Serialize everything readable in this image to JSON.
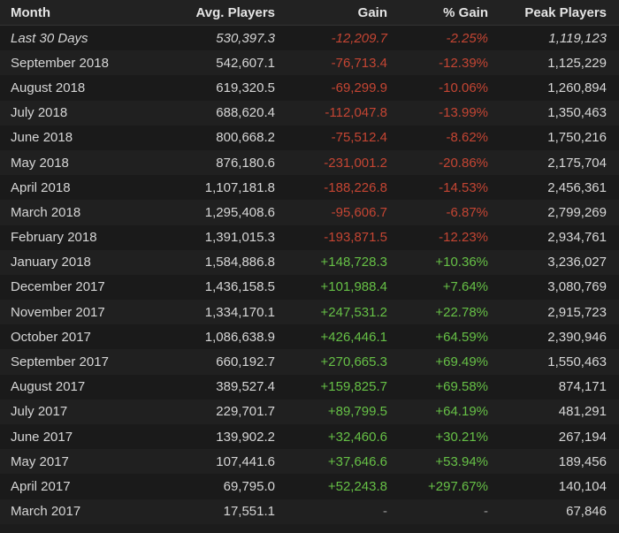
{
  "table": {
    "headers": {
      "month": "Month",
      "avg_players": "Avg. Players",
      "gain": "Gain",
      "pct_gain": "% Gain",
      "peak_players": "Peak Players"
    },
    "rows": [
      {
        "month": "Last 30 Days",
        "avg": "530,397.3",
        "gain": "-12,209.7",
        "pct": "-2.25%",
        "peak": "1,119,123",
        "trend": "neg",
        "italic": true
      },
      {
        "month": "September 2018",
        "avg": "542,607.1",
        "gain": "-76,713.4",
        "pct": "-12.39%",
        "peak": "1,125,229",
        "trend": "neg"
      },
      {
        "month": "August 2018",
        "avg": "619,320.5",
        "gain": "-69,299.9",
        "pct": "-10.06%",
        "peak": "1,260,894",
        "trend": "neg"
      },
      {
        "month": "July 2018",
        "avg": "688,620.4",
        "gain": "-112,047.8",
        "pct": "-13.99%",
        "peak": "1,350,463",
        "trend": "neg"
      },
      {
        "month": "June 2018",
        "avg": "800,668.2",
        "gain": "-75,512.4",
        "pct": "-8.62%",
        "peak": "1,750,216",
        "trend": "neg"
      },
      {
        "month": "May 2018",
        "avg": "876,180.6",
        "gain": "-231,001.2",
        "pct": "-20.86%",
        "peak": "2,175,704",
        "trend": "neg"
      },
      {
        "month": "April 2018",
        "avg": "1,107,181.8",
        "gain": "-188,226.8",
        "pct": "-14.53%",
        "peak": "2,456,361",
        "trend": "neg"
      },
      {
        "month": "March 2018",
        "avg": "1,295,408.6",
        "gain": "-95,606.7",
        "pct": "-6.87%",
        "peak": "2,799,269",
        "trend": "neg"
      },
      {
        "month": "February 2018",
        "avg": "1,391,015.3",
        "gain": "-193,871.5",
        "pct": "-12.23%",
        "peak": "2,934,761",
        "trend": "neg"
      },
      {
        "month": "January 2018",
        "avg": "1,584,886.8",
        "gain": "+148,728.3",
        "pct": "+10.36%",
        "peak": "3,236,027",
        "trend": "pos"
      },
      {
        "month": "December 2017",
        "avg": "1,436,158.5",
        "gain": "+101,988.4",
        "pct": "+7.64%",
        "peak": "3,080,769",
        "trend": "pos"
      },
      {
        "month": "November 2017",
        "avg": "1,334,170.1",
        "gain": "+247,531.2",
        "pct": "+22.78%",
        "peak": "2,915,723",
        "trend": "pos"
      },
      {
        "month": "October 2017",
        "avg": "1,086,638.9",
        "gain": "+426,446.1",
        "pct": "+64.59%",
        "peak": "2,390,946",
        "trend": "pos"
      },
      {
        "month": "September 2017",
        "avg": "660,192.7",
        "gain": "+270,665.3",
        "pct": "+69.49%",
        "peak": "1,550,463",
        "trend": "pos"
      },
      {
        "month": "August 2017",
        "avg": "389,527.4",
        "gain": "+159,825.7",
        "pct": "+69.58%",
        "peak": "874,171",
        "trend": "pos"
      },
      {
        "month": "July 2017",
        "avg": "229,701.7",
        "gain": "+89,799.5",
        "pct": "+64.19%",
        "peak": "481,291",
        "trend": "pos"
      },
      {
        "month": "June 2017",
        "avg": "139,902.2",
        "gain": "+32,460.6",
        "pct": "+30.21%",
        "peak": "267,194",
        "trend": "pos"
      },
      {
        "month": "May 2017",
        "avg": "107,441.6",
        "gain": "+37,646.6",
        "pct": "+53.94%",
        "peak": "189,456",
        "trend": "pos"
      },
      {
        "month": "April 2017",
        "avg": "69,795.0",
        "gain": "+52,243.8",
        "pct": "+297.67%",
        "peak": "140,104",
        "trend": "pos"
      },
      {
        "month": "March 2017",
        "avg": "17,551.1",
        "gain": "-",
        "pct": "-",
        "peak": "67,846",
        "trend": "none"
      }
    ]
  },
  "colors": {
    "background": "#1c1c1c",
    "text": "#d6d6d6",
    "negative": "#c44533",
    "positive": "#66c046"
  }
}
